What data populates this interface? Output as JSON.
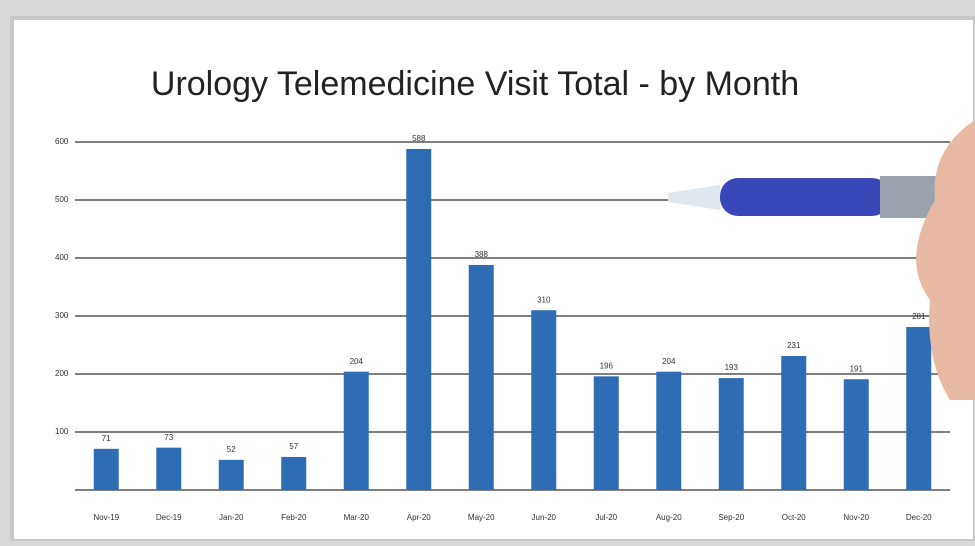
{
  "chart_data": {
    "type": "bar",
    "title": "Urology Telemedicine Visit Total - by Month",
    "categories": [
      "Nov-19",
      "Dec-19",
      "Jan-20",
      "Feb-20",
      "Mar-20",
      "Apr-20",
      "May-20",
      "Jun-20",
      "Jul-20",
      "Aug-20",
      "Sep-20",
      "Oct-20",
      "Nov-20",
      "Dec-20"
    ],
    "values": [
      71,
      73,
      52,
      57,
      204,
      588,
      388,
      310,
      196,
      204,
      193,
      231,
      191,
      281
    ],
    "color": "#2e6db4",
    "ylim": [
      0,
      600
    ],
    "yticks": [
      100,
      200,
      300,
      400,
      500,
      600
    ],
    "grid": true
  }
}
